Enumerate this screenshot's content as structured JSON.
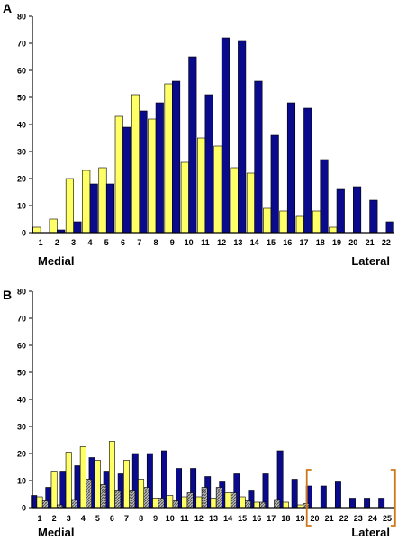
{
  "colors": {
    "navy": "#0A0A8C",
    "yellow": "#FFFF66",
    "hatch": "#8C8C8C",
    "bracket": "#D07818",
    "axis": "#000000"
  },
  "chart_data": [
    {
      "type": "bar",
      "panel_label": "A",
      "categories": [
        "1",
        "2",
        "3",
        "4",
        "5",
        "6",
        "7",
        "8",
        "9",
        "10",
        "11",
        "12",
        "13",
        "14",
        "15",
        "16",
        "17",
        "18",
        "19",
        "20",
        "21",
        "22"
      ],
      "ylim": [
        0,
        80
      ],
      "yticks": [
        "0",
        "10",
        "20",
        "30",
        "40",
        "50",
        "60",
        "70",
        "80"
      ],
      "grid": false,
      "x_end_labels": {
        "left": "Medial",
        "right": "Lateral"
      },
      "series": [
        {
          "color": "yellow",
          "values": [
            2,
            5,
            20,
            23,
            24,
            43,
            51,
            42,
            55,
            26,
            35,
            32,
            24,
            22,
            9,
            8,
            6,
            8,
            2,
            0,
            0,
            0
          ]
        },
        {
          "color": "navy",
          "values": [
            0,
            1,
            4,
            18,
            18,
            39,
            45,
            48,
            56,
            65,
            51,
            72,
            71,
            56,
            36,
            48,
            46,
            27,
            16,
            17,
            12,
            4
          ]
        }
      ]
    },
    {
      "type": "bar",
      "panel_label": "B",
      "categories": [
        "1",
        "2",
        "3",
        "4",
        "5",
        "6",
        "7",
        "8",
        "9",
        "10",
        "11",
        "12",
        "13",
        "14",
        "15",
        "16",
        "17",
        "18",
        "19",
        "20",
        "21",
        "22",
        "23",
        "24",
        "25"
      ],
      "ylim": [
        0,
        80
      ],
      "yticks": [
        "0",
        "10",
        "20",
        "30",
        "40",
        "50",
        "60",
        "70",
        "80"
      ],
      "grid": false,
      "x_end_labels": {
        "left": "Medial",
        "right": "Lateral"
      },
      "bracket_categories": [
        "20",
        "25"
      ],
      "series": [
        {
          "color": "navy",
          "values": [
            4.5,
            7.5,
            13.5,
            15.5,
            18.5,
            13.5,
            12.5,
            20,
            20,
            21,
            14.5,
            14.5,
            11.5,
            9.5,
            12.5,
            6.5,
            12.5,
            21,
            10.5,
            8,
            8,
            9.5,
            3.5,
            3.5,
            3.5
          ]
        },
        {
          "color": "yellow",
          "values": [
            4,
            13.5,
            20.5,
            22.5,
            17.5,
            24.5,
            17.5,
            10.5,
            3.5,
            4.5,
            4,
            4,
            3.5,
            5.5,
            4,
            2,
            0,
            2,
            1,
            0,
            0,
            0,
            0,
            0,
            0
          ]
        },
        {
          "color": "hatch",
          "values": [
            2.5,
            1,
            3,
            10.5,
            8.5,
            6.5,
            6.5,
            7.5,
            3.5,
            2.5,
            5.5,
            7.5,
            7.5,
            5.5,
            2.5,
            2,
            3,
            0,
            1.5,
            0,
            0,
            0,
            0,
            0,
            0
          ]
        }
      ]
    }
  ]
}
